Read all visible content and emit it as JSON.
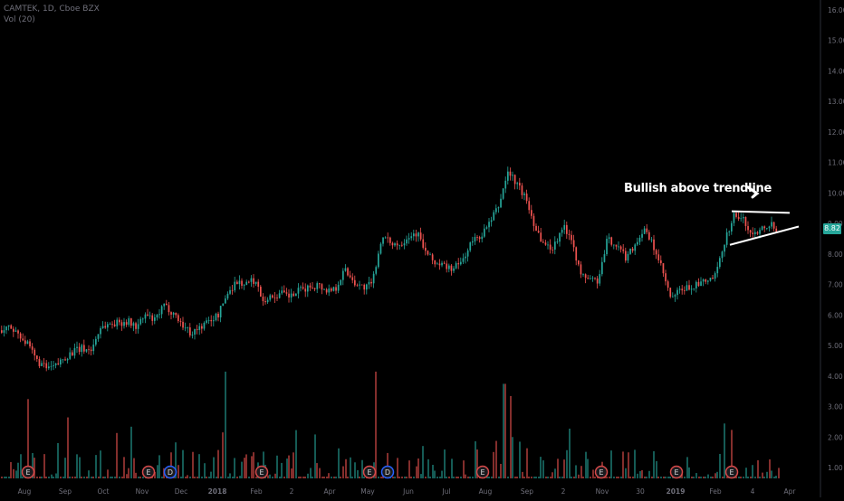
{
  "legend": {
    "symbol_line": "CAMTEK, 1D, Cboe BZX",
    "volume_line": "Vol (20)"
  },
  "annotation": "Bullish above trendline",
  "last_price": "8.82",
  "colors": {
    "up": "#26a69a",
    "down": "#ef5350",
    "background": "#000000",
    "axis_text": "#6f6f7a",
    "trendline": "#ffffff"
  },
  "event_badges": [
    {
      "label": "E",
      "kind": "earnings",
      "x_label_index": 0
    },
    {
      "label": "E",
      "kind": "earnings"
    },
    {
      "label": "D",
      "kind": "dividend"
    },
    {
      "label": "E",
      "kind": "earnings"
    },
    {
      "label": "E",
      "kind": "earnings"
    },
    {
      "label": "D",
      "kind": "dividend"
    },
    {
      "label": "E",
      "kind": "earnings"
    },
    {
      "label": "E",
      "kind": "earnings"
    },
    {
      "label": "E",
      "kind": "earnings"
    },
    {
      "label": "E",
      "kind": "earnings"
    }
  ],
  "chart_data": {
    "type": "candlestick",
    "title": "",
    "y_axis": {
      "ticks": [
        "16.00",
        "15.00",
        "14.00",
        "13.00",
        "12.00",
        "11.00",
        "10.00",
        "9.00",
        "8.00",
        "7.00",
        "6.00",
        "5.00",
        "4.00",
        "3.00",
        "2.00",
        "1.00"
      ],
      "ylim": [
        0.5,
        16.2
      ],
      "scale": "linear",
      "position": "right"
    },
    "x_axis": {
      "ticks": [
        "Aug",
        "Sep",
        "Oct",
        "Nov",
        "Dec",
        "2018",
        "Feb",
        "2",
        "Apr",
        "May",
        "Jun",
        "Jul",
        "Aug",
        "Sep",
        "2",
        "Nov",
        "30",
        "2019",
        "Feb",
        "4",
        "Apr"
      ]
    },
    "price_path": [
      [
        0,
        5.5
      ],
      [
        10,
        5.6
      ],
      [
        20,
        5.4
      ],
      [
        30,
        5.0
      ],
      [
        40,
        4.5
      ],
      [
        50,
        4.25
      ],
      [
        60,
        4.3
      ],
      [
        70,
        4.6
      ],
      [
        80,
        4.8
      ],
      [
        90,
        4.9
      ],
      [
        100,
        4.85
      ],
      [
        110,
        5.6
      ],
      [
        120,
        5.7
      ],
      [
        130,
        5.75
      ],
      [
        140,
        5.8
      ],
      [
        150,
        5.6
      ],
      [
        160,
        6.0
      ],
      [
        170,
        5.8
      ],
      [
        180,
        6.3
      ],
      [
        190,
        6.1
      ],
      [
        200,
        5.7
      ],
      [
        210,
        5.4
      ],
      [
        220,
        5.6
      ],
      [
        230,
        5.8
      ],
      [
        240,
        6.0
      ],
      [
        250,
        6.7
      ],
      [
        260,
        7.1
      ],
      [
        270,
        7.0
      ],
      [
        280,
        7.15
      ],
      [
        290,
        6.5
      ],
      [
        300,
        6.6
      ],
      [
        310,
        6.7
      ],
      [
        320,
        6.6
      ],
      [
        330,
        6.8
      ],
      [
        340,
        6.9
      ],
      [
        350,
        7.0
      ],
      [
        360,
        6.8
      ],
      [
        370,
        6.9
      ],
      [
        380,
        7.5
      ],
      [
        390,
        7.1
      ],
      [
        400,
        6.9
      ],
      [
        410,
        7.0
      ],
      [
        420,
        8.5
      ],
      [
        430,
        8.4
      ],
      [
        440,
        8.3
      ],
      [
        450,
        8.6
      ],
      [
        460,
        8.7
      ],
      [
        470,
        8.0
      ],
      [
        480,
        7.7
      ],
      [
        490,
        7.6
      ],
      [
        500,
        7.5
      ],
      [
        510,
        7.8
      ],
      [
        520,
        8.4
      ],
      [
        530,
        8.6
      ],
      [
        540,
        9.0
      ],
      [
        550,
        9.6
      ],
      [
        560,
        10.7
      ],
      [
        570,
        10.3
      ],
      [
        580,
        9.8
      ],
      [
        590,
        8.9
      ],
      [
        600,
        8.3
      ],
      [
        610,
        8.2
      ],
      [
        620,
        8.9
      ],
      [
        630,
        8.6
      ],
      [
        640,
        7.3
      ],
      [
        650,
        7.2
      ],
      [
        660,
        7.1
      ],
      [
        670,
        8.5
      ],
      [
        680,
        8.3
      ],
      [
        690,
        7.9
      ],
      [
        700,
        8.3
      ],
      [
        710,
        8.8
      ],
      [
        720,
        8.3
      ],
      [
        730,
        7.5
      ],
      [
        740,
        6.5
      ],
      [
        750,
        6.8
      ],
      [
        760,
        6.9
      ],
      [
        770,
        7.0
      ],
      [
        780,
        7.1
      ],
      [
        790,
        7.3
      ],
      [
        800,
        8.5
      ],
      [
        810,
        9.3
      ],
      [
        820,
        9.1
      ],
      [
        830,
        8.6
      ],
      [
        840,
        8.9
      ],
      [
        850,
        9.0
      ],
      [
        858,
        8.8
      ]
    ],
    "volume": {
      "label": "Vol (20)",
      "spikes": [
        {
          "date_index": 30,
          "value": 3.6
        },
        {
          "date_index": 74,
          "value": 3.0
        },
        {
          "date_index": 248,
          "value": 4.5
        },
        {
          "date_index": 414,
          "value": 4.5
        },
        {
          "date_index": 556,
          "value": 4.1
        },
        {
          "date_index": 562,
          "value": 3.7
        },
        {
          "date_index": 800,
          "value": 2.8
        }
      ]
    },
    "trendlines": [
      {
        "name": "upper",
        "from": [
          808,
          9.4
        ],
        "to": [
          872,
          9.35
        ]
      },
      {
        "name": "lower",
        "from": [
          806,
          8.3
        ],
        "to": [
          882,
          8.9
        ]
      }
    ],
    "legend_position": "top-left",
    "grid": false
  }
}
